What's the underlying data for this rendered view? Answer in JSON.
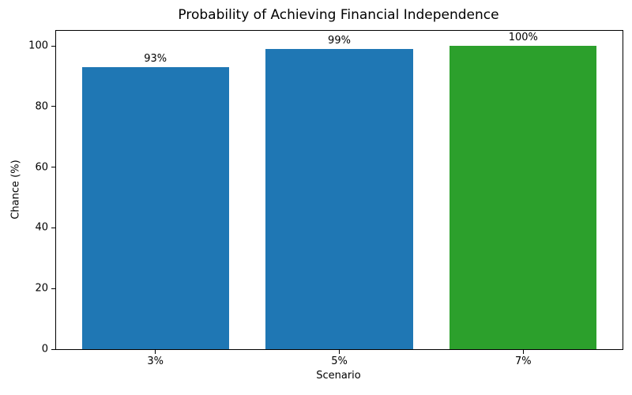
{
  "chart_data": {
    "type": "bar",
    "title": "Probability of Achieving Financial Independence",
    "xlabel": "Scenario",
    "ylabel": "Chance (%)",
    "categories": [
      "3%",
      "5%",
      "7%"
    ],
    "values": [
      93,
      99,
      100
    ],
    "bar_labels": [
      "93%",
      "99%",
      "100%"
    ],
    "bar_colors": [
      "#1f77b4",
      "#1f77b4",
      "#2ca02c"
    ],
    "yticks": [
      0,
      20,
      40,
      60,
      80,
      100
    ],
    "ylim": [
      0,
      105
    ],
    "grid": false,
    "legend_position": "none",
    "background_color": "#ffffff",
    "spine_color": "#000000",
    "bar_width_fraction": 0.8
  }
}
